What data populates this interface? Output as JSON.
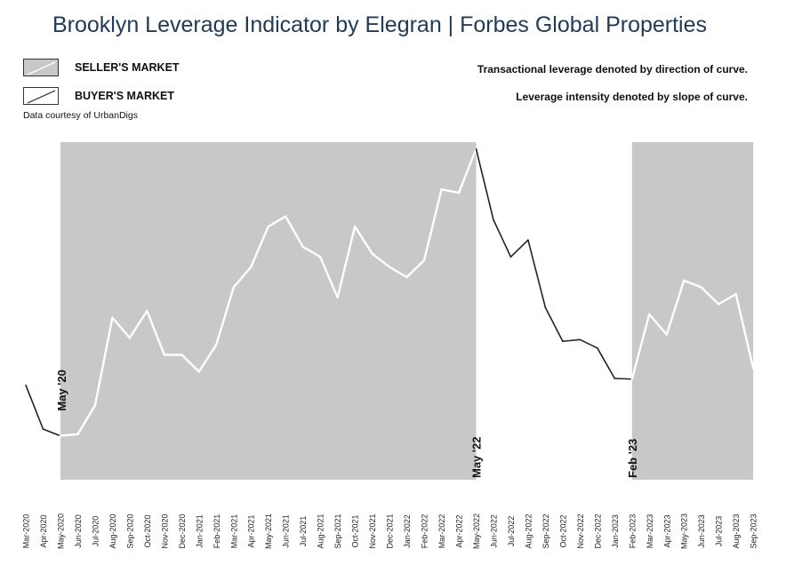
{
  "title": "Brooklyn Leverage Indicator by Elegran | Forbes Global Properties",
  "legend": {
    "seller_label": "SELLER'S MARKET",
    "buyer_label": "BUYER'S MARKET"
  },
  "notes": {
    "direction": "Transactional leverage denoted by direction of curve.",
    "intensity": "Leverage intensity denoted by slope of curve."
  },
  "source": "Data courtesy of UrbanDigs",
  "colors": {
    "shade": "#c8c8c8",
    "seller_line": "#ffffff",
    "buyer_line": "#222222",
    "title": "#1f3b57"
  },
  "chart_data": {
    "type": "line",
    "title": "Brooklyn Leverage Indicator by Elegran | Forbes Global Properties",
    "xlabel": "",
    "ylabel": "",
    "y_axis_shown": false,
    "categories": [
      "Mar-2020",
      "Apr-2020",
      "May-2020",
      "Jun-2020",
      "Jul-2020",
      "Aug-2020",
      "Sep-2020",
      "Oct-2020",
      "Nov-2020",
      "Dec-2020",
      "Jan-2021",
      "Feb-2021",
      "Mar-2021",
      "Apr-2021",
      "May-2021",
      "Jun-2021",
      "Jul-2021",
      "Aug-2021",
      "Sep-2021",
      "Oct-2021",
      "Nov-2021",
      "Dec-2021",
      "Jan-2022",
      "Feb-2022",
      "Mar-2022",
      "Apr-2022",
      "May-2022",
      "Jun-2022",
      "Jul-2022",
      "Aug-2022",
      "Sep-2022",
      "Oct-2022",
      "Nov-2022",
      "Dec-2022",
      "Jan-2023",
      "Feb-2023",
      "Mar-2023",
      "Apr-2023",
      "May-2023",
      "Jun-2023",
      "Jul-2023",
      "Aug-2023",
      "Sep-2023"
    ],
    "values": [
      28,
      15,
      13,
      13.5,
      22,
      48,
      42,
      50,
      37,
      37,
      32,
      40,
      57,
      63,
      75,
      78,
      69,
      66,
      54,
      75,
      67,
      63,
      60,
      65,
      86,
      85,
      98,
      77,
      66,
      71,
      51,
      41,
      41.5,
      39,
      30,
      29.8,
      49,
      43,
      59,
      57,
      52,
      55,
      33
    ],
    "ylim": [
      0,
      100
    ],
    "regions": [
      {
        "type": "seller",
        "start": "May-2020",
        "end": "May-2022"
      },
      {
        "type": "buyer",
        "start": "May-2022",
        "end": "Feb-2023"
      },
      {
        "type": "seller",
        "start": "Feb-2023",
        "end": "Sep-2023"
      }
    ],
    "annotations": [
      {
        "label": "May '20",
        "at": "May-2020"
      },
      {
        "label": "May '22",
        "at": "May-2022"
      },
      {
        "label": "Feb '23",
        "at": "Feb-2023"
      }
    ]
  }
}
